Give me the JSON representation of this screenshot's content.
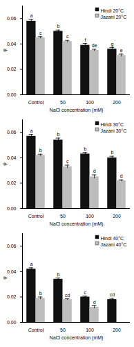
{
  "chart_data": [
    {
      "type": "bar",
      "categories": [
        "Control",
        "50",
        "100",
        "200"
      ],
      "x_label": "NaCl concentration (mM)",
      "y_label": "φ",
      "ylim": [
        0,
        0.07
      ],
      "yticks": [
        {
          "value": 0,
          "label": "0.00"
        },
        0.02,
        0.04,
        0.06
      ],
      "legend": "top-right",
      "series": [
        {
          "name": "Hindi 20°C",
          "color": "#111111",
          "values": [
            0.058,
            0.05,
            0.039,
            0.036
          ],
          "errors": [
            0.0012,
            0.001,
            0.0015,
            0.0012
          ],
          "labels": [
            "a",
            "b",
            "f",
            "g"
          ]
        },
        {
          "name": "Jazani 20°C",
          "color": "#bdbdbd",
          "values": [
            0.045,
            0.042,
            0.035,
            0.031
          ],
          "errors": [
            0.0008,
            0.0008,
            0.0008,
            0.001
          ],
          "labels": [
            "c",
            "c",
            "de",
            "e"
          ]
        }
      ]
    },
    {
      "type": "bar",
      "categories": [
        "Control",
        "50",
        "100",
        "200"
      ],
      "x_label": "NaCl concentration (mM)",
      "y_label": "φ",
      "ylim": [
        0,
        0.07
      ],
      "yticks": [
        {
          "value": 0,
          "label": "0.00"
        },
        0.02,
        0.04,
        0.06
      ],
      "legend": "top-right",
      "series": [
        {
          "name": "Hindi 30°C",
          "color": "#111111",
          "values": [
            0.057,
            0.054,
            0.043,
            0.04
          ],
          "errors": [
            0.0015,
            0.0015,
            0.0012,
            0.0012
          ],
          "labels": [
            "a",
            "b",
            "b",
            "b"
          ]
        },
        {
          "name": "Jazani 30°C",
          "color": "#bdbdbd",
          "values": [
            0.042,
            0.033,
            0.025,
            0.022
          ],
          "errors": [
            0.0008,
            0.0012,
            0.0015,
            0.0006
          ],
          "labels": [
            "b",
            "c",
            "d",
            "d"
          ]
        }
      ]
    },
    {
      "type": "bar",
      "categories": [
        "Control",
        "50",
        "100",
        "200"
      ],
      "x_label": "NaCl concentration (mM)",
      "y_label": "φ",
      "ylim": [
        0,
        0.07
      ],
      "yticks": [
        {
          "value": 0,
          "label": "0.00"
        },
        0.02,
        0.04,
        0.06
      ],
      "legend": "top-right",
      "series": [
        {
          "name": "Hindi 40°C",
          "color": "#111111",
          "values": [
            0.042,
            0.034,
            0.02,
            0.018
          ],
          "errors": [
            0.001,
            0.001,
            0.0008,
            0.0008
          ],
          "labels": [
            "a",
            "b",
            "c",
            "cd"
          ]
        },
        {
          "name": "Jazani 40°C",
          "color": "#bdbdbd",
          "values": [
            0.019,
            0.018,
            0.012,
            null
          ],
          "errors": [
            0.001,
            0.0006,
            0.0012,
            null
          ],
          "labels": [
            "b",
            "cd",
            "d",
            null
          ]
        }
      ]
    }
  ]
}
